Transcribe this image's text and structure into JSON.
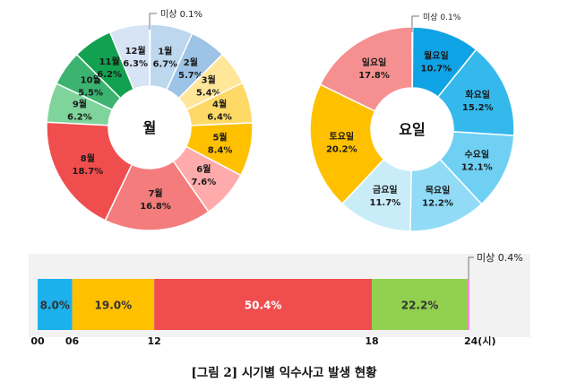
{
  "caption": "[그림 2] 시기별 익수사고 발생 현황",
  "chart_data": [
    {
      "type": "pie",
      "center_label": "월",
      "slices": [
        {
          "label": "1월",
          "value": 6.7,
          "pct": "6.7%",
          "color": "#bdd7ee"
        },
        {
          "label": "2월",
          "value": 5.7,
          "pct": "5.7%",
          "color": "#9dc3e6"
        },
        {
          "label": "3월",
          "value": 5.4,
          "pct": "5.4%",
          "color": "#ffe699"
        },
        {
          "label": "4월",
          "value": 6.4,
          "pct": "6.4%",
          "color": "#ffd966"
        },
        {
          "label": "5월",
          "value": 8.4,
          "pct": "8.4%",
          "color": "#ffc000"
        },
        {
          "label": "6월",
          "value": 7.6,
          "pct": "7.6%",
          "color": "#ffabab"
        },
        {
          "label": "7월",
          "value": 16.8,
          "pct": "16.8%",
          "color": "#f47c7c"
        },
        {
          "label": "8월",
          "value": 18.7,
          "pct": "18.7%",
          "color": "#f04e4e"
        },
        {
          "label": "9월",
          "value": 6.2,
          "pct": "6.2%",
          "color": "#7fd49b"
        },
        {
          "label": "10월",
          "value": 5.5,
          "pct": "5.5%",
          "color": "#3cb371"
        },
        {
          "label": "11월",
          "value": 6.2,
          "pct": "6.2%",
          "color": "#12a150"
        },
        {
          "label": "12월",
          "value": 6.3,
          "pct": "6.3%",
          "color": "#d6e4f5"
        }
      ],
      "unknown": {
        "label": "미상",
        "value": 0.1,
        "pct": "0.1%"
      }
    },
    {
      "type": "pie",
      "center_label": "요일",
      "slices": [
        {
          "label": "월요일",
          "value": 10.7,
          "pct": "10.7%",
          "color": "#0fa3e6"
        },
        {
          "label": "화요일",
          "value": 15.2,
          "pct": "15.2%",
          "color": "#35b9ec"
        },
        {
          "label": "수요일",
          "value": 12.1,
          "pct": "12.1%",
          "color": "#6fd0f4"
        },
        {
          "label": "목요일",
          "value": 12.2,
          "pct": "12.2%",
          "color": "#91dbf6"
        },
        {
          "label": "금요일",
          "value": 11.7,
          "pct": "11.7%",
          "color": "#c9ecf9"
        },
        {
          "label": "토요일",
          "value": 20.2,
          "pct": "20.2%",
          "color": "#ffc000"
        },
        {
          "label": "일요일",
          "value": 17.8,
          "pct": "17.8%",
          "color": "#f69090"
        }
      ],
      "unknown": {
        "label": "미상",
        "value": 0.1,
        "pct": "0.1%"
      }
    },
    {
      "type": "bar",
      "orientation": "horizontal-stacked",
      "segments": [
        {
          "from": 0,
          "to": 6,
          "value": 8.0,
          "pct": "8.0%",
          "color": "#1cb0ec",
          "text_color": "#333333"
        },
        {
          "from": 6,
          "to": 12,
          "value": 19.0,
          "pct": "19.0%",
          "color": "#ffc000",
          "text_color": "#333333"
        },
        {
          "from": 12,
          "to": 18,
          "value": 50.4,
          "pct": "50.4%",
          "color": "#f04e4e",
          "text_color": "#ffffff"
        },
        {
          "from": 18,
          "to": 24,
          "value": 22.2,
          "pct": "22.2%",
          "color": "#92d050",
          "text_color": "#333333"
        }
      ],
      "unknown": {
        "label": "미상",
        "value": 0.4,
        "pct": "0.4%",
        "color": "#ff7ee8"
      },
      "ticks": [
        "00",
        "06",
        "12",
        "18",
        "24(시)"
      ]
    }
  ]
}
